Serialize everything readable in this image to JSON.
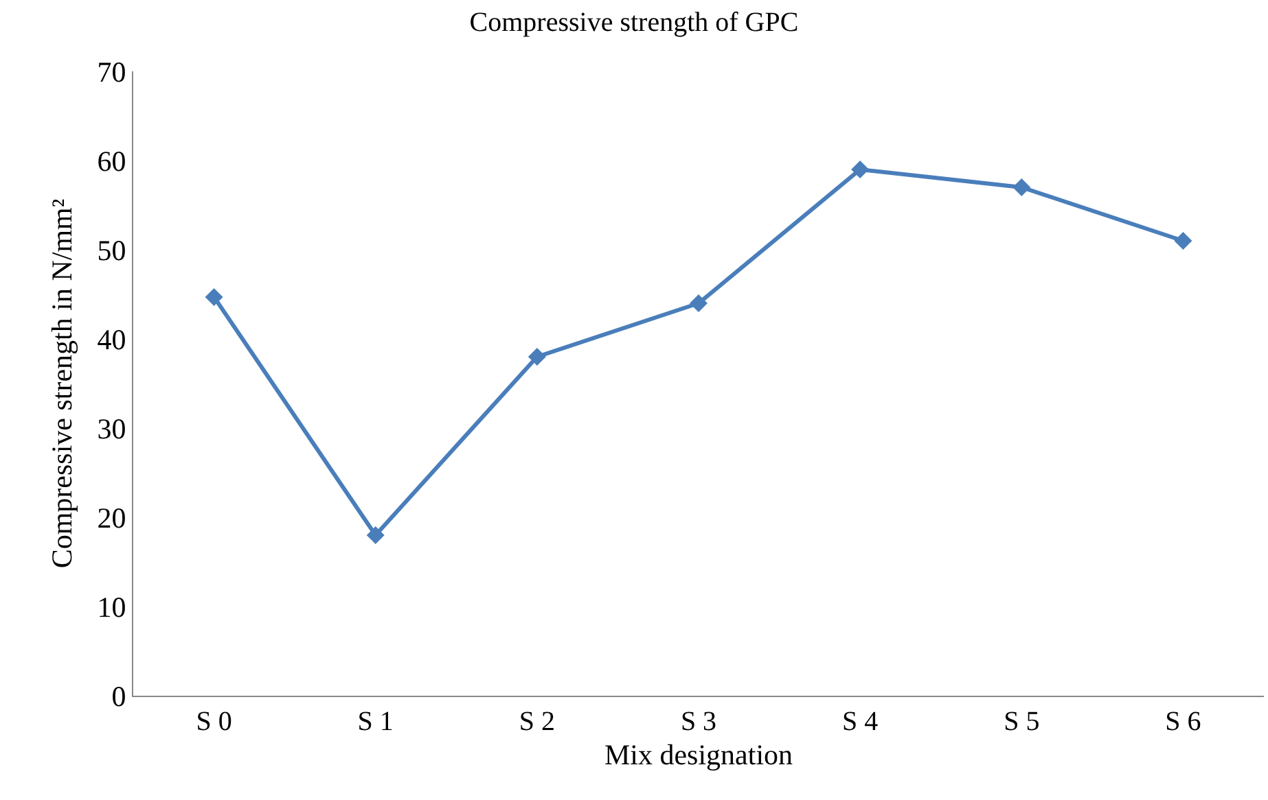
{
  "chart_data": {
    "type": "line",
    "title": "Compressive strength of GPC",
    "xlabel": "Mix designation",
    "ylabel": "Compressive strength in N/mm²",
    "categories": [
      "S 0",
      "S 1",
      "S 2",
      "S 3",
      "S 4",
      "S 5",
      "S 6"
    ],
    "series": [
      {
        "color": "#4a7ebb",
        "values": [
          44.7,
          18,
          38,
          44,
          59,
          57,
          51
        ]
      }
    ],
    "ylim": [
      0,
      70
    ],
    "yticks": [
      0,
      10,
      20,
      30,
      40,
      50,
      60,
      70
    ],
    "grid": false,
    "marker": "diamond",
    "line_style": "solid"
  }
}
